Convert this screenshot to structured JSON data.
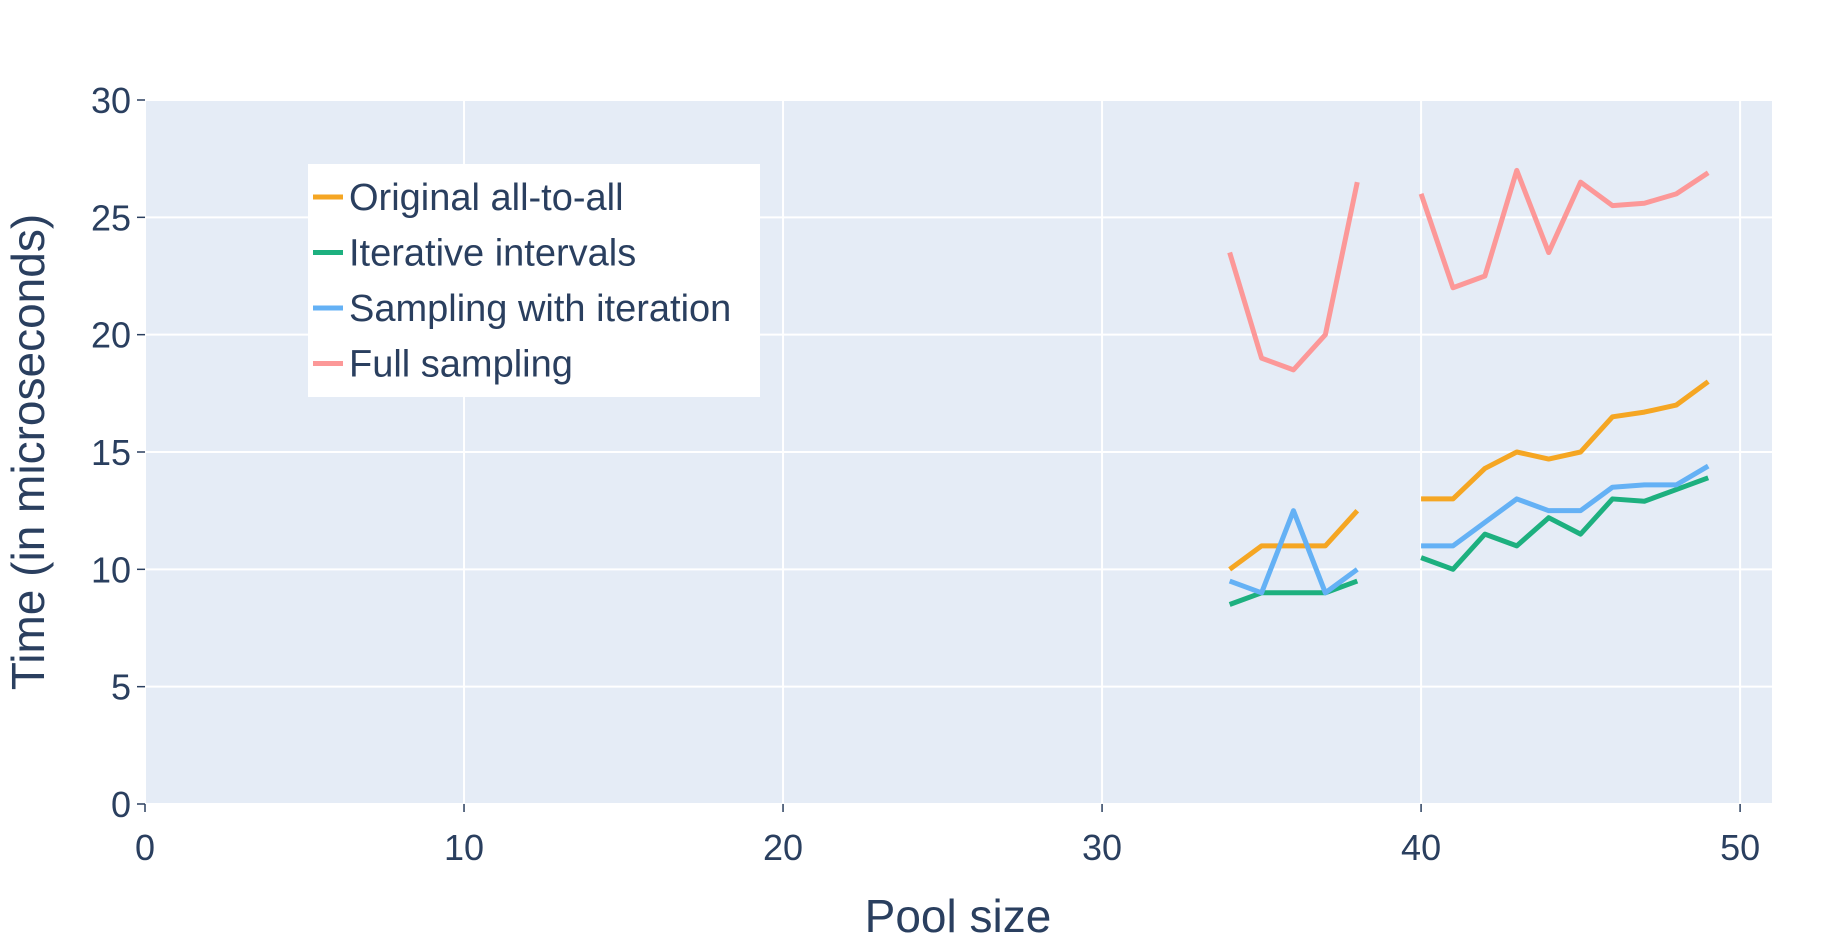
{
  "chart_data": {
    "type": "line",
    "title": "",
    "xlabel": "Pool size",
    "ylabel": "Time (in microseconds)",
    "xlim": [
      0,
      51
    ],
    "ylim": [
      0,
      30
    ],
    "xticks": [
      0,
      10,
      20,
      30,
      40,
      50
    ],
    "yticks": [
      0,
      5,
      10,
      15,
      20,
      25,
      30
    ],
    "grid": true,
    "legend_position": "top-left",
    "background_color": "#e5ecf6",
    "text_color": "#2a3f5f",
    "series": [
      {
        "name": "Original all-to-all",
        "color": "#f5a623",
        "x": [
          34,
          35,
          36,
          37,
          38,
          null,
          40,
          41,
          42,
          43,
          44,
          45,
          46,
          47,
          48,
          49
        ],
        "y": [
          10,
          11,
          11,
          11,
          12.5,
          null,
          13,
          13,
          14.3,
          15,
          14.7,
          15,
          16.5,
          16.7,
          17,
          18
        ]
      },
      {
        "name": "Iterative intervals",
        "color": "#1db07f",
        "x": [
          34,
          35,
          36,
          37,
          38,
          null,
          40,
          41,
          42,
          43,
          44,
          45,
          46,
          47,
          48,
          49
        ],
        "y": [
          8.5,
          9,
          9,
          9,
          9.5,
          null,
          10.5,
          10,
          11.5,
          11,
          12.2,
          11.5,
          13,
          12.9,
          13.4,
          13.9
        ]
      },
      {
        "name": "Sampling with iteration",
        "color": "#64b1f5",
        "x": [
          34,
          35,
          36,
          37,
          38,
          null,
          40,
          41,
          42,
          43,
          44,
          45,
          46,
          47,
          48,
          49
        ],
        "y": [
          9.5,
          9,
          12.5,
          9,
          10,
          null,
          11,
          11,
          12,
          13,
          12.5,
          12.5,
          13.5,
          13.6,
          13.6,
          14.4
        ]
      },
      {
        "name": "Full sampling",
        "color": "#fc9898",
        "x": [
          34,
          35,
          36,
          37,
          38,
          null,
          40,
          41,
          42,
          43,
          44,
          45,
          46,
          47,
          48,
          49
        ],
        "y": [
          23.5,
          19,
          18.5,
          20,
          26.5,
          null,
          26,
          22,
          22.5,
          27,
          23.5,
          26.5,
          25.5,
          25.6,
          26,
          26.9
        ]
      }
    ]
  }
}
